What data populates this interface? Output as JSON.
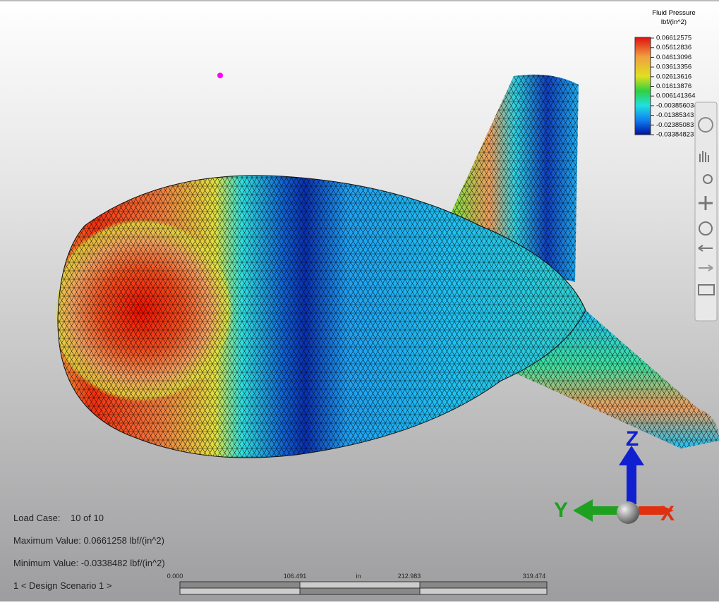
{
  "legend": {
    "title": "Fluid Pressure",
    "unit": "lbf/(in^2)",
    "values": [
      "0.06612575",
      "0.05612836",
      "0.04613096",
      "0.03613356",
      "0.02613616",
      "0.01613876",
      "0.006141364",
      "-0.003856034",
      "-0.01385343",
      "-0.02385083",
      "-0.03384823"
    ]
  },
  "info": {
    "load_case_label": "Load Case:",
    "load_case_value": "10 of 10",
    "maximum": "Maximum Value: 0.0661258 lbf/(in^2)",
    "minimum": "Minimum Value: -0.0338482 lbf/(in^2)",
    "scenario": "1 < Design Scenario 1 >"
  },
  "scale_bar": {
    "ticks": [
      "0.000",
      "106.491",
      "212.983",
      "319.474"
    ],
    "unit": "in"
  },
  "triad": {
    "z": "Z",
    "y": "Y",
    "x": "X"
  }
}
